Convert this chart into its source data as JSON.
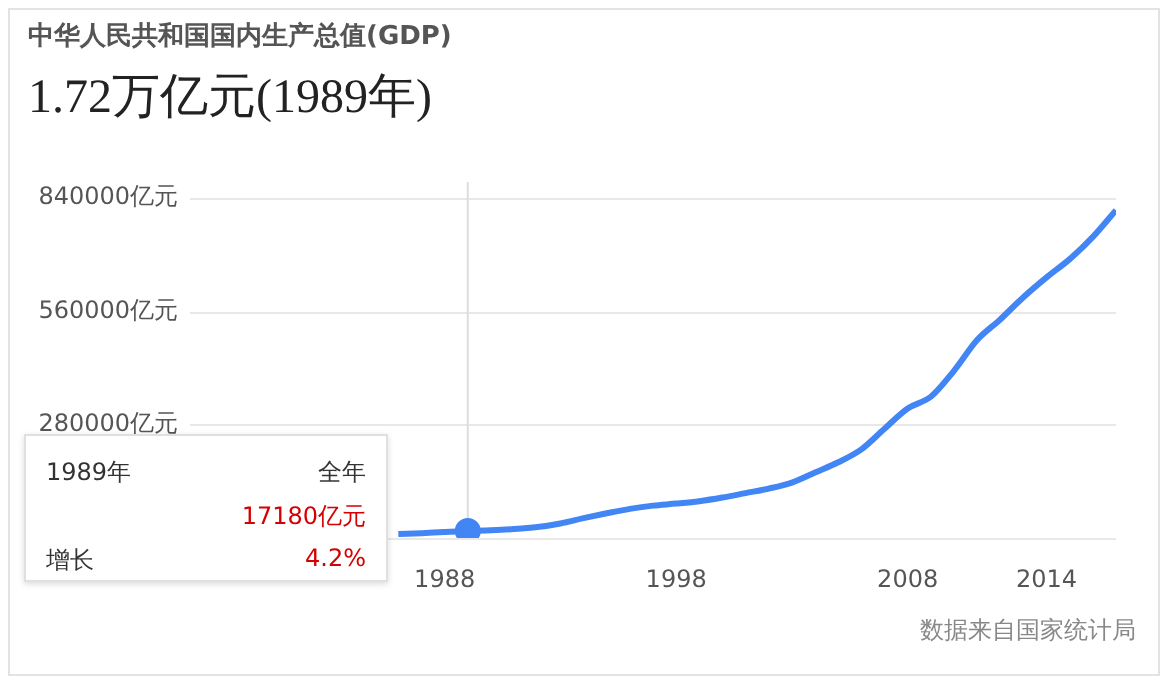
{
  "chart_data": {
    "type": "line",
    "title": "中华人民共和国国内生产总值(GDP)",
    "subtitle": "1.72万亿元(1989年)",
    "x": [
      1986,
      1987,
      1988,
      1989,
      1990,
      1991,
      1992,
      1993,
      1994,
      1995,
      1996,
      1997,
      1998,
      1999,
      2000,
      2001,
      2002,
      2003,
      2004,
      2005,
      2006,
      2007,
      2008,
      2009,
      2010,
      2011,
      2012,
      2013,
      2014,
      2015,
      2016,
      2017
    ],
    "series": [
      {
        "color": "#4285f4",
        "values": [
          10000,
          12000,
          15000,
          17180,
          19000,
          22000,
          27000,
          36000,
          49000,
          61000,
          72000,
          80000,
          85000,
          91000,
          100000,
          111000,
          122000,
          137000,
          162000,
          187000,
          219000,
          270000,
          320000,
          349000,
          413000,
          489000,
          540000,
          595000,
          644000,
          689000,
          744000,
          810000
        ]
      },
      {
        "type": "scatter",
        "marker": "circle",
        "color": "#4285f4",
        "x": [
          1989
        ],
        "values": [
          17180
        ]
      }
    ],
    "xlim": [
      1977,
      2017
    ],
    "xticks": [
      1988,
      1998,
      2008,
      2014
    ],
    "ylim": [
      0,
      840000
    ],
    "yticks": [
      {
        "value": 0,
        "label": null
      },
      {
        "value": 280000,
        "label": "280000亿元"
      },
      {
        "value": 560000,
        "label": "560000亿元"
      },
      {
        "value": 840000,
        "label": "840000亿元"
      }
    ],
    "grid": "y",
    "legend": false,
    "marker": "none",
    "ref_lines": [
      {
        "axis": "x",
        "value": 1989,
        "color": "#dddddd"
      }
    ],
    "annotations": [
      "1989年",
      "全年",
      "17180亿元",
      "增长",
      "4.2%",
      "数据来自国家统计局"
    ]
  }
}
